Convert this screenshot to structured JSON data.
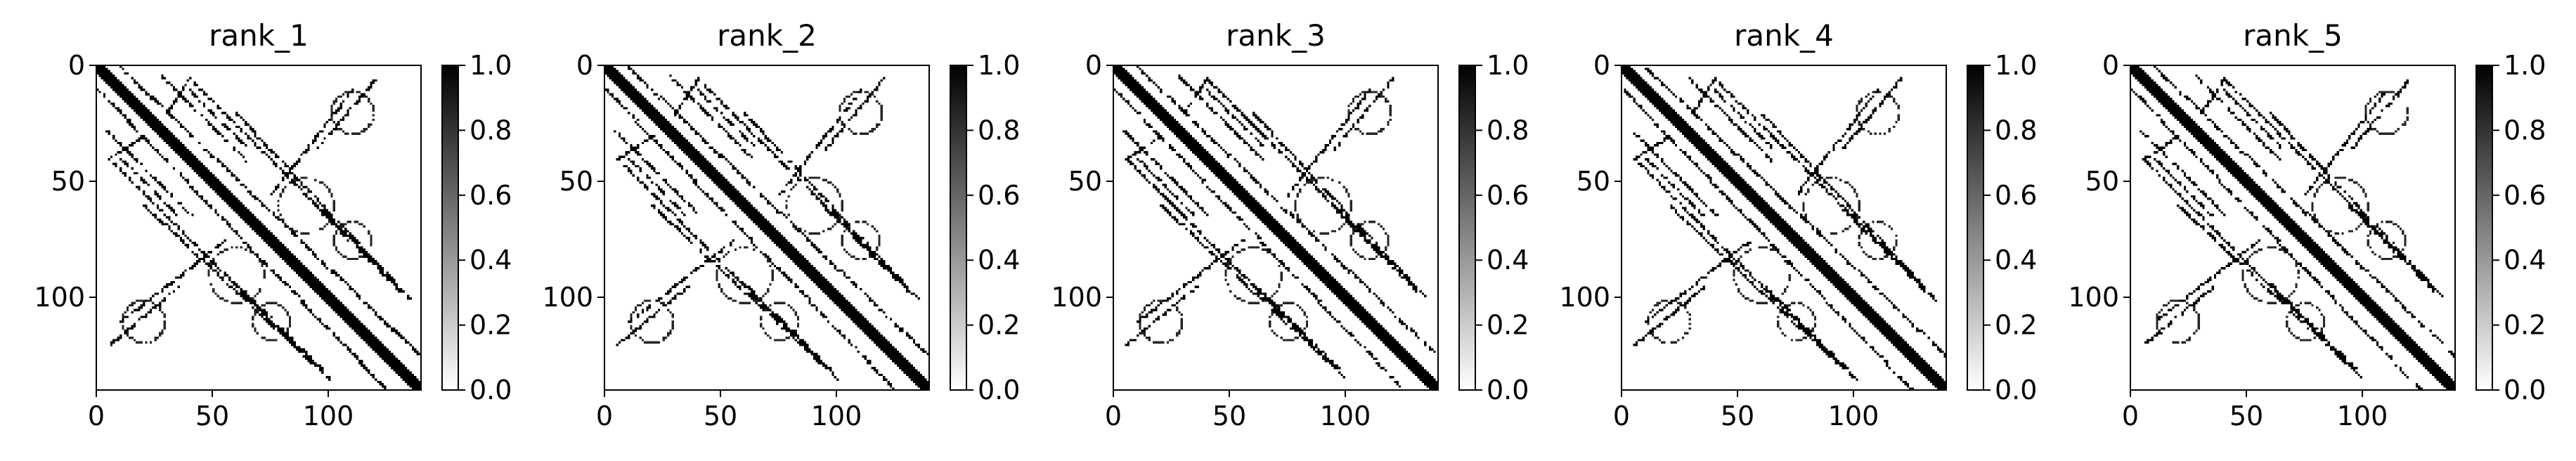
{
  "chart_data": [
    {
      "type": "heatmap",
      "title": "rank_1",
      "matrix_size": 140,
      "colormap": "gray_r",
      "xlim": [
        0,
        140
      ],
      "ylim": [
        140,
        0
      ],
      "x_ticks": [
        0,
        50,
        100
      ],
      "y_ticks": [
        0,
        50,
        100
      ],
      "x_tick_labels": [
        "0",
        "50",
        "100"
      ],
      "y_tick_labels": [
        "0",
        "50",
        "100"
      ],
      "colorbar": {
        "range": [
          0.0,
          1.0
        ],
        "ticks": [
          0.0,
          0.2,
          0.4,
          0.6,
          0.8,
          1.0
        ],
        "tick_labels": [
          "0.0",
          "0.2",
          "0.4",
          "0.6",
          "0.8",
          "1.0"
        ]
      }
    },
    {
      "type": "heatmap",
      "title": "rank_2",
      "matrix_size": 140,
      "colormap": "gray_r",
      "xlim": [
        0,
        140
      ],
      "ylim": [
        140,
        0
      ],
      "x_ticks": [
        0,
        50,
        100
      ],
      "y_ticks": [
        0,
        50,
        100
      ],
      "x_tick_labels": [
        "0",
        "50",
        "100"
      ],
      "y_tick_labels": [
        "0",
        "50",
        "100"
      ],
      "colorbar": {
        "range": [
          0.0,
          1.0
        ],
        "ticks": [
          0.0,
          0.2,
          0.4,
          0.6,
          0.8,
          1.0
        ],
        "tick_labels": [
          "0.0",
          "0.2",
          "0.4",
          "0.6",
          "0.8",
          "1.0"
        ]
      }
    },
    {
      "type": "heatmap",
      "title": "rank_3",
      "matrix_size": 140,
      "colormap": "gray_r",
      "xlim": [
        0,
        140
      ],
      "ylim": [
        140,
        0
      ],
      "x_ticks": [
        0,
        50,
        100
      ],
      "y_ticks": [
        0,
        50,
        100
      ],
      "x_tick_labels": [
        "0",
        "50",
        "100"
      ],
      "y_tick_labels": [
        "0",
        "50",
        "100"
      ],
      "colorbar": {
        "range": [
          0.0,
          1.0
        ],
        "ticks": [
          0.0,
          0.2,
          0.4,
          0.6,
          0.8,
          1.0
        ],
        "tick_labels": [
          "0.0",
          "0.2",
          "0.4",
          "0.6",
          "0.8",
          "1.0"
        ]
      }
    },
    {
      "type": "heatmap",
      "title": "rank_4",
      "matrix_size": 140,
      "colormap": "gray_r",
      "xlim": [
        0,
        140
      ],
      "ylim": [
        140,
        0
      ],
      "x_ticks": [
        0,
        50,
        100
      ],
      "y_ticks": [
        0,
        50,
        100
      ],
      "x_tick_labels": [
        "0",
        "50",
        "100"
      ],
      "y_tick_labels": [
        "0",
        "50",
        "100"
      ],
      "colorbar": {
        "range": [
          0.0,
          1.0
        ],
        "ticks": [
          0.0,
          0.2,
          0.4,
          0.6,
          0.8,
          1.0
        ],
        "tick_labels": [
          "0.0",
          "0.2",
          "0.4",
          "0.6",
          "0.8",
          "1.0"
        ]
      }
    },
    {
      "type": "heatmap",
      "title": "rank_5",
      "matrix_size": 140,
      "colormap": "gray_r",
      "xlim": [
        0,
        140
      ],
      "ylim": [
        140,
        0
      ],
      "x_ticks": [
        0,
        50,
        100
      ],
      "y_ticks": [
        0,
        50,
        100
      ],
      "x_tick_labels": [
        "0",
        "50",
        "100"
      ],
      "y_tick_labels": [
        "0",
        "50",
        "100"
      ],
      "colorbar": {
        "range": [
          0.0,
          1.0
        ],
        "ticks": [
          0.0,
          0.2,
          0.4,
          0.6,
          0.8,
          1.0
        ],
        "tick_labels": [
          "0.0",
          "0.2",
          "0.4",
          "0.6",
          "0.8",
          "1.0"
        ]
      }
    }
  ],
  "contact_map_structure": {
    "diagonal": [
      [
        0,
        0
      ],
      [
        140,
        140
      ]
    ],
    "bands": [
      {
        "from": [
          4,
          28
        ],
        "to": [
          40,
          64
        ]
      },
      {
        "from": [
          10,
          40
        ],
        "to": [
          34,
          64
        ]
      },
      {
        "from": [
          60,
          94
        ],
        "to": [
          96,
          130
        ]
      },
      {
        "from": [
          20,
          30
        ],
        "to": [
          5,
          40
        ]
      },
      {
        "from": [
          35,
          95
        ],
        "to": [
          5,
          120
        ]
      },
      {
        "from": [
          55,
          75
        ],
        "to": [
          10,
          110
        ]
      },
      {
        "from": [
          95,
          130
        ],
        "to": [
          5,
          40
        ]
      },
      {
        "from": [
          100,
          135
        ],
        "to": [
          20,
          60
        ]
      },
      {
        "from": [
          125,
          140
        ],
        "to": [
          0,
          10
        ]
      }
    ],
    "faint_loops": [
      {
        "center": [
          60,
          90
        ],
        "radius": 12
      },
      {
        "center": [
          90,
          60
        ],
        "radius": 12
      },
      {
        "center": [
          20,
          110
        ],
        "radius": 9
      },
      {
        "center": [
          110,
          20
        ],
        "radius": 9
      },
      {
        "center": [
          75,
          110
        ],
        "radius": 8
      },
      {
        "center": [
          110,
          75
        ],
        "radius": 8
      }
    ]
  }
}
